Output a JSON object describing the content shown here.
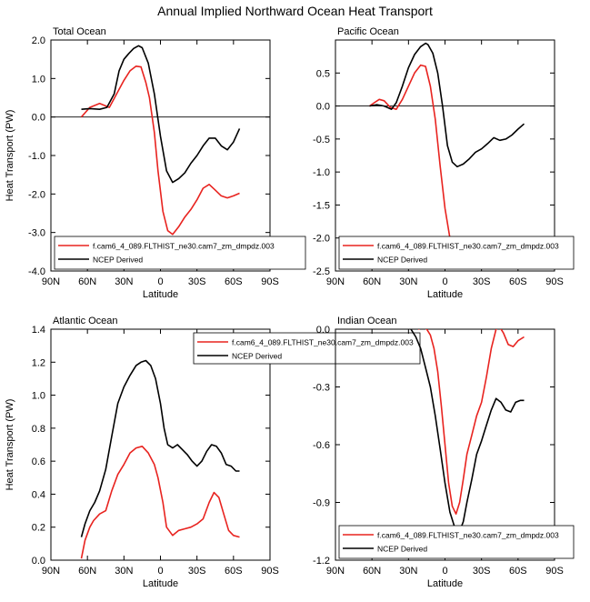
{
  "figure": {
    "title": "Annual Implied Northward Ocean Heat Transport"
  },
  "colors": {
    "model": "#e8231f",
    "obs": "#000000",
    "axis": "#000000",
    "background": "#ffffff"
  },
  "chart_data": [
    {
      "type": "line",
      "panel_title": "Total Ocean",
      "xlabel": "Latitude",
      "ylabel": "Heat Transport (PW)",
      "xlim": [
        90,
        -90
      ],
      "ylim": [
        -4.0,
        2.0
      ],
      "x_ticks": [
        90,
        60,
        30,
        0,
        -30,
        -60,
        -90
      ],
      "x_tick_labels": [
        "90N",
        "60N",
        "30N",
        "0",
        "30S",
        "60S",
        "90S"
      ],
      "y_ticks": [
        -4.0,
        -3.0,
        -2.0,
        -1.0,
        0.0,
        1.0,
        2.0
      ],
      "y_tick_labels": [
        "-4.0",
        "-3.0",
        "-2.0",
        "-1.0",
        "0.0",
        "1.0",
        "2.0"
      ],
      "zero_line": true,
      "legend_position": "bottom",
      "series": [
        {
          "name": "f.cam6_4_089.FLTHIST_ne30.cam7_zm_dmpdz.003",
          "color": "#e8231f",
          "x": [
            65,
            58,
            50,
            42,
            36,
            30,
            25,
            20,
            16,
            12,
            9,
            5,
            2,
            -2,
            -6,
            -10,
            -15,
            -20,
            -25,
            -30,
            -35,
            -40,
            -45,
            -50,
            -55,
            -60,
            -65
          ],
          "y": [
            0.0,
            0.25,
            0.35,
            0.25,
            0.6,
            0.95,
            1.2,
            1.32,
            1.3,
            0.9,
            0.5,
            -0.4,
            -1.4,
            -2.45,
            -2.95,
            -3.05,
            -2.85,
            -2.6,
            -2.4,
            -2.15,
            -1.85,
            -1.75,
            -1.9,
            -2.05,
            -2.1,
            -2.05,
            -1.98
          ]
        },
        {
          "name": "NCEP Derived",
          "color": "#000000",
          "x": [
            65,
            58,
            50,
            44,
            38,
            34,
            30,
            26,
            22,
            18,
            15,
            10,
            5,
            0,
            -5,
            -10,
            -15,
            -20,
            -25,
            -30,
            -35,
            -40,
            -45,
            -50,
            -55,
            -60,
            -65
          ],
          "y": [
            0.2,
            0.22,
            0.2,
            0.25,
            0.6,
            1.2,
            1.5,
            1.65,
            1.78,
            1.85,
            1.8,
            1.4,
            0.6,
            -0.5,
            -1.4,
            -1.7,
            -1.6,
            -1.45,
            -1.2,
            -1.0,
            -0.75,
            -0.55,
            -0.55,
            -0.75,
            -0.85,
            -0.65,
            -0.3
          ]
        }
      ]
    },
    {
      "type": "line",
      "panel_title": "Pacific Ocean",
      "xlabel": "Latitude",
      "ylabel": "",
      "xlim": [
        90,
        -90
      ],
      "ylim": [
        -2.5,
        1.0
      ],
      "x_ticks": [
        90,
        60,
        30,
        0,
        -30,
        -60,
        -90
      ],
      "x_tick_labels": [
        "90N",
        "60N",
        "30N",
        "0",
        "30S",
        "60S",
        "90S"
      ],
      "y_ticks": [
        -2.5,
        -2.0,
        -1.5,
        -1.0,
        -0.5,
        0.0,
        0.5
      ],
      "y_tick_labels": [
        "-2.5",
        "-2.0",
        "-1.5",
        "-1.0",
        "-0.5",
        "0.0",
        "0.5"
      ],
      "zero_line": true,
      "legend_position": "bottom",
      "series": [
        {
          "name": "f.cam6_4_089.FLTHIST_ne30.cam7_zm_dmpdz.003",
          "color": "#e8231f",
          "x": [
            62,
            58,
            54,
            50,
            45,
            40,
            35,
            30,
            25,
            20,
            16,
            12,
            8,
            4,
            0,
            -4,
            -8,
            -12,
            -16,
            -20,
            -25,
            -30,
            -35,
            -40,
            -45,
            -50,
            -55,
            -60,
            -65
          ],
          "y": [
            0.0,
            0.05,
            0.1,
            0.08,
            -0.02,
            -0.05,
            0.1,
            0.3,
            0.5,
            0.62,
            0.6,
            0.3,
            -0.2,
            -0.9,
            -1.55,
            -2.0,
            -2.2,
            -2.25,
            -2.2,
            -2.15,
            -2.12,
            -2.1,
            -2.12,
            -2.15,
            -2.2,
            -2.18,
            -2.12,
            -2.07,
            -2.04
          ]
        },
        {
          "name": "NCEP Derived",
          "color": "#000000",
          "x": [
            62,
            56,
            50,
            44,
            40,
            35,
            30,
            25,
            20,
            16,
            14,
            10,
            6,
            2,
            -2,
            -6,
            -10,
            -15,
            -20,
            -25,
            -30,
            -35,
            -40,
            -45,
            -50,
            -55,
            -60,
            -65
          ],
          "y": [
            0.0,
            0.02,
            0.0,
            -0.05,
            0.05,
            0.3,
            0.58,
            0.78,
            0.9,
            0.95,
            0.93,
            0.8,
            0.5,
            0.0,
            -0.6,
            -0.85,
            -0.92,
            -0.88,
            -0.8,
            -0.7,
            -0.65,
            -0.57,
            -0.48,
            -0.52,
            -0.5,
            -0.44,
            -0.35,
            -0.27
          ]
        }
      ]
    },
    {
      "type": "line",
      "panel_title": "Atlantic Ocean",
      "xlabel": "Latitude",
      "ylabel": "Heat Transport (PW)",
      "xlim": [
        90,
        -90
      ],
      "ylim": [
        0.0,
        1.4
      ],
      "x_ticks": [
        90,
        60,
        30,
        0,
        -30,
        -60,
        -90
      ],
      "x_tick_labels": [
        "90N",
        "60N",
        "30N",
        "0",
        "30S",
        "60S",
        "90S"
      ],
      "y_ticks": [
        0.0,
        0.2,
        0.4,
        0.6,
        0.8,
        1.0,
        1.2,
        1.4
      ],
      "y_tick_labels": [
        "0.0",
        "0.2",
        "0.4",
        "0.6",
        "0.8",
        "1.0",
        "1.2",
        "1.4"
      ],
      "zero_line": false,
      "legend_position": "top-right",
      "series": [
        {
          "name": "f.cam6_4_089.FLTHIST_ne30.cam7_zm_dmpdz.003",
          "color": "#e8231f",
          "x": [
            65,
            62,
            58,
            55,
            50,
            45,
            40,
            35,
            30,
            25,
            20,
            15,
            10,
            5,
            2,
            -2,
            -5,
            -10,
            -15,
            -20,
            -25,
            -30,
            -35,
            -40,
            -44,
            -48,
            -52,
            -56,
            -60,
            -65
          ],
          "y": [
            0.01,
            0.12,
            0.2,
            0.24,
            0.28,
            0.3,
            0.42,
            0.52,
            0.58,
            0.65,
            0.68,
            0.69,
            0.65,
            0.58,
            0.5,
            0.35,
            0.2,
            0.15,
            0.18,
            0.19,
            0.2,
            0.22,
            0.25,
            0.35,
            0.41,
            0.38,
            0.28,
            0.18,
            0.15,
            0.14
          ]
        },
        {
          "name": "NCEP Derived",
          "color": "#000000",
          "x": [
            65,
            62,
            58,
            54,
            50,
            45,
            40,
            35,
            30,
            25,
            20,
            16,
            12,
            8,
            4,
            0,
            -3,
            -6,
            -10,
            -14,
            -18,
            -22,
            -26,
            -30,
            -34,
            -38,
            -42,
            -46,
            -50,
            -54,
            -58,
            -62,
            -65
          ],
          "y": [
            0.14,
            0.22,
            0.3,
            0.35,
            0.42,
            0.55,
            0.75,
            0.95,
            1.05,
            1.12,
            1.18,
            1.2,
            1.21,
            1.18,
            1.1,
            0.95,
            0.8,
            0.7,
            0.68,
            0.7,
            0.67,
            0.64,
            0.6,
            0.57,
            0.6,
            0.66,
            0.7,
            0.69,
            0.65,
            0.58,
            0.57,
            0.54,
            0.54
          ]
        }
      ]
    },
    {
      "type": "line",
      "panel_title": "Indian Ocean",
      "xlabel": "Latitude",
      "ylabel": "",
      "xlim": [
        90,
        -90
      ],
      "ylim": [
        -1.2,
        0.0
      ],
      "x_ticks": [
        90,
        60,
        30,
        0,
        -30,
        -60,
        -90
      ],
      "x_tick_labels": [
        "90N",
        "60N",
        "30N",
        "0",
        "30S",
        "60S",
        "90S"
      ],
      "y_ticks": [
        -1.2,
        -0.9,
        -0.6,
        -0.3,
        0.0
      ],
      "y_tick_labels": [
        "-1.2",
        "-0.9",
        "-0.6",
        "-0.3",
        "0.0"
      ],
      "zero_line": true,
      "legend_position": "bottom",
      "series": [
        {
          "name": "f.cam6_4_089.FLTHIST_ne30.cam7_zm_dmpdz.003",
          "color": "#e8231f",
          "x": [
            22,
            18,
            15,
            12,
            9,
            6,
            3,
            0,
            -3,
            -6,
            -9,
            -12,
            -15,
            -18,
            -22,
            -26,
            -30,
            -34,
            -38,
            -42,
            -45,
            -48,
            -52,
            -56,
            -60,
            -65
          ],
          "y": [
            0.0,
            0.01,
            0.0,
            -0.03,
            -0.1,
            -0.22,
            -0.4,
            -0.6,
            -0.8,
            -0.92,
            -0.96,
            -0.9,
            -0.78,
            -0.65,
            -0.55,
            -0.45,
            -0.38,
            -0.25,
            -0.1,
            0.0,
            0.01,
            -0.02,
            -0.08,
            -0.09,
            -0.06,
            -0.04
          ]
        },
        {
          "name": "NCEP Derived",
          "color": "#000000",
          "x": [
            28,
            24,
            20,
            16,
            12,
            8,
            4,
            0,
            -4,
            -8,
            -12,
            -15,
            -18,
            -22,
            -26,
            -30,
            -34,
            -38,
            -42,
            -46,
            -50,
            -54,
            -58,
            -62,
            -65
          ],
          "y": [
            0.0,
            -0.04,
            -0.1,
            -0.2,
            -0.3,
            -0.45,
            -0.62,
            -0.8,
            -0.95,
            -1.03,
            -1.05,
            -1.0,
            -0.9,
            -0.78,
            -0.65,
            -0.58,
            -0.5,
            -0.42,
            -0.36,
            -0.38,
            -0.42,
            -0.43,
            -0.38,
            -0.37,
            -0.37
          ]
        }
      ]
    }
  ]
}
